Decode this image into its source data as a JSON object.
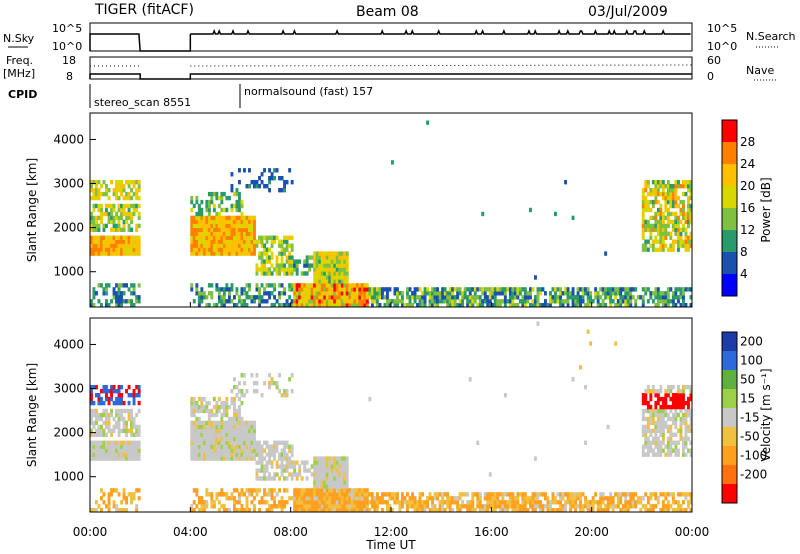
{
  "header": {
    "radar": "TIGER (fitACF)",
    "beam": "Beam 08",
    "date": "03/Jul/2009"
  },
  "panels": {
    "nsky": {
      "label": "N.Sky",
      "right_label": "N.Search",
      "left_ticks": [
        "10^5",
        "10^0"
      ],
      "right_ticks": [
        "10^5",
        "10^0"
      ]
    },
    "freq": {
      "label_top": "Freq.",
      "label_bottom": "[MHz]",
      "right_label": "Nave",
      "left_ticks": [
        "18",
        "8"
      ],
      "right_ticks": [
        "60",
        "0"
      ]
    },
    "cpid": {
      "label": "CPID",
      "segments": [
        "stereo_scan 8551",
        "normalsound (fast) 157"
      ]
    }
  },
  "chart_data": [
    {
      "type": "heatmap",
      "quantity": "Power",
      "ylabel": "Slant Range [km]",
      "xlabel": "",
      "ylim": [
        200,
        4600
      ],
      "yticks": [
        "1000",
        "2000",
        "3000",
        "4000"
      ],
      "colorbar": {
        "label": "Power [dB]",
        "ticks": [
          "28",
          "24",
          "20",
          "16",
          "12",
          "8",
          "4"
        ],
        "colors": [
          "#ff0000",
          "#ff8000",
          "#ffc000",
          "#d8d800",
          "#80c040",
          "#2a9a6a",
          "#1a50b0",
          "#0000ff"
        ]
      }
    },
    {
      "type": "heatmap",
      "quantity": "Velocity",
      "ylabel": "Slant Range [km]",
      "xlabel": "Time UT",
      "ylim": [
        200,
        4600
      ],
      "yticks": [
        "1000",
        "2000",
        "3000",
        "4000"
      ],
      "xticks": [
        "00:00",
        "04:00",
        "08:00",
        "12:00",
        "16:00",
        "20:00",
        "00:00"
      ],
      "colorbar": {
        "label": "Velocity [m s⁻¹]",
        "ticks": [
          "200",
          "100",
          "50",
          "15",
          "-15",
          "-50",
          "-100",
          "-200"
        ],
        "colors": [
          "#1e3ca8",
          "#2b6ad8",
          "#60b040",
          "#9bd048",
          "#c8c8c8",
          "#f0c040",
          "#ffa020",
          "#ff7010",
          "#ff0000"
        ]
      }
    }
  ]
}
